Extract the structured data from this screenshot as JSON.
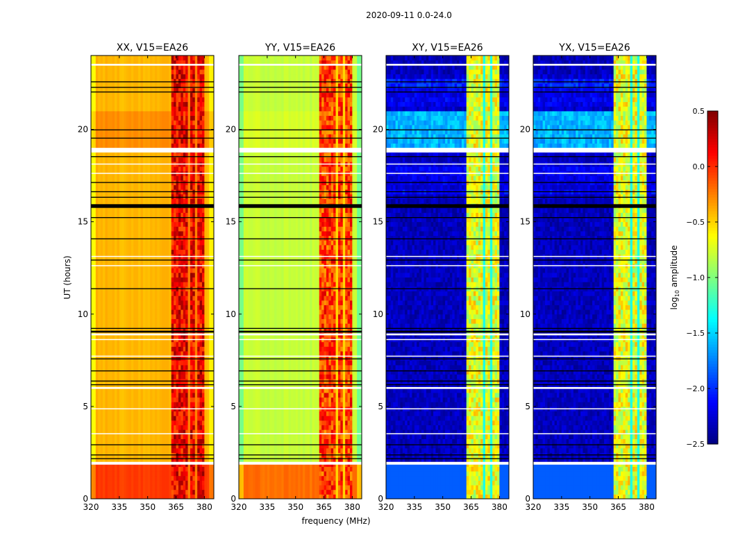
{
  "chart_data": {
    "type": "heatmap",
    "suptitle": "2020-09-11 0.0-24.0",
    "xlabel": "frequency (MHz)",
    "ylabel": "UT (hours)",
    "xlim": [
      320,
      385
    ],
    "ylim": [
      0,
      24
    ],
    "xticks": [
      "320",
      "335",
      "350",
      "365",
      "380"
    ],
    "xtick_values": [
      320,
      335,
      350,
      365,
      380
    ],
    "yticks": [
      "0",
      "5",
      "10",
      "15",
      "20"
    ],
    "ytick_values": [
      0,
      5,
      10,
      15,
      20
    ],
    "colorbar": {
      "label_prefix": "log",
      "label_sub": "10",
      "label_suffix": " amplitude",
      "range": [
        -2.5,
        0.5
      ],
      "ticks": [
        "0.5",
        "0.0",
        "−0.5",
        "−1.0",
        "−1.5",
        "−2.0",
        "−2.5"
      ],
      "tick_values": [
        0.5,
        0.0,
        -0.5,
        -1.0,
        -1.5,
        -2.0,
        -2.5
      ],
      "colormap": "jet"
    },
    "rfi_bands_mhz": [
      [
        363,
        367
      ],
      [
        368,
        371.5
      ],
      [
        372,
        375.5
      ],
      [
        376,
        379.5
      ]
    ],
    "flagged_white_hours": [
      [
        1.85,
        2.0
      ],
      [
        5.95,
        6.05
      ],
      [
        7.7,
        7.75
      ],
      [
        8.6,
        8.65
      ],
      [
        8.85,
        8.95
      ],
      [
        18.75,
        19.0
      ],
      [
        23.45,
        23.55
      ],
      [
        17.6,
        17.65
      ],
      [
        18.1,
        18.15
      ],
      [
        13.1,
        13.15
      ],
      [
        12.6,
        12.65
      ],
      [
        4.85,
        4.9
      ],
      [
        3.5,
        3.55
      ]
    ],
    "flagged_black_hours": [
      [
        2.15,
        2.2
      ],
      [
        2.35,
        2.4
      ],
      [
        2.9,
        2.95
      ],
      [
        6.15,
        6.2
      ],
      [
        6.35,
        6.4
      ],
      [
        6.9,
        6.95
      ],
      [
        7.55,
        7.6
      ],
      [
        9.0,
        9.1
      ],
      [
        9.2,
        9.25
      ],
      [
        11.35,
        11.4
      ],
      [
        12.9,
        12.95
      ],
      [
        14.05,
        14.1
      ],
      [
        15.2,
        15.25
      ],
      [
        15.75,
        15.95
      ],
      [
        16.3,
        16.35
      ],
      [
        16.6,
        16.65
      ],
      [
        17.1,
        17.15
      ],
      [
        18.5,
        18.55
      ],
      [
        19.5,
        19.55
      ],
      [
        19.95,
        20.0
      ],
      [
        22.0,
        22.05
      ],
      [
        22.25,
        22.3
      ],
      [
        22.55,
        22.6
      ]
    ],
    "panels": [
      {
        "title": "XX, V15=EA26",
        "base": -0.42,
        "early": -0.05,
        "late_19_21": -0.3,
        "rfi": 0.15,
        "rfi_gap": -0.25,
        "edge_drop": -0.2
      },
      {
        "title": "YY, V15=EA26",
        "base": -0.8,
        "early": -0.2,
        "late_19_21": -0.75,
        "rfi": -0.05,
        "rfi_gap": -0.5,
        "edge_drop": -0.25
      },
      {
        "title": "XY, V15=EA26",
        "base": -2.45,
        "early": -1.85,
        "late_19_21": -1.75,
        "rfi": -0.7,
        "rfi_gap": -1.3,
        "edge_drop": 0
      },
      {
        "title": "YX, V15=EA26",
        "base": -2.45,
        "early": -1.85,
        "late_19_21": -1.75,
        "rfi": -0.7,
        "rfi_gap": -1.3,
        "edge_drop": 0
      }
    ]
  }
}
